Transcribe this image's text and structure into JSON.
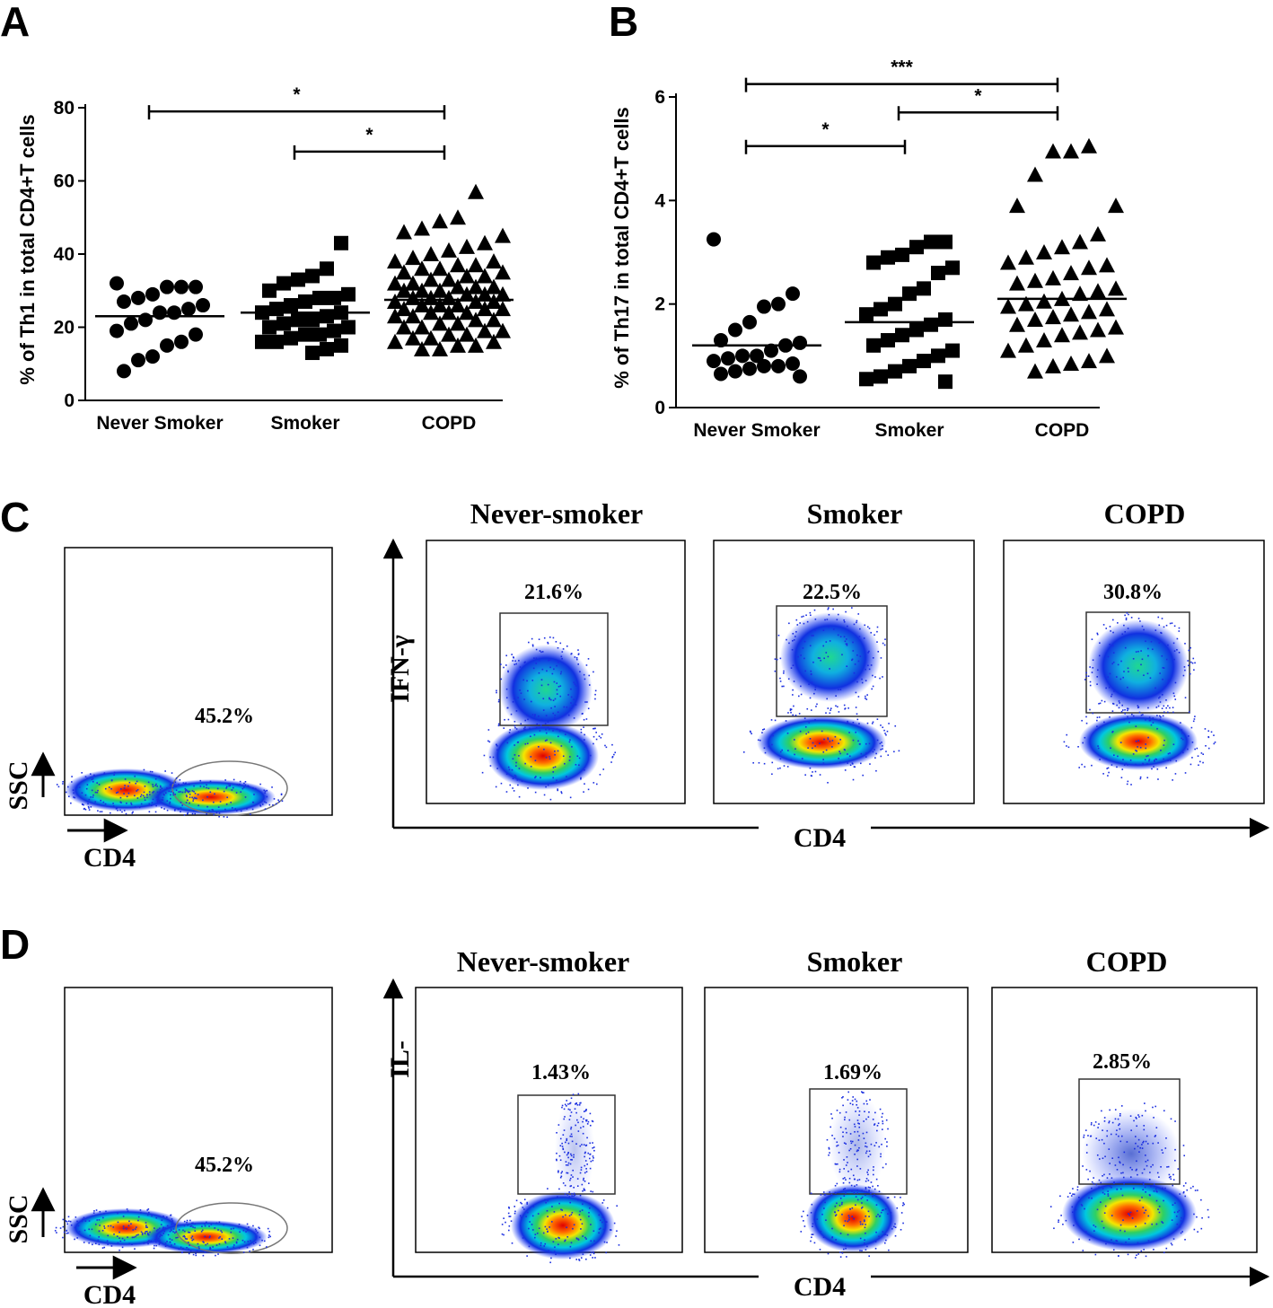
{
  "chart_data": [
    {
      "type": "strip",
      "panel_label": "A",
      "ylabel": "% of Th1 in total CD4+T cells",
      "categories": [
        "Never Smoker",
        "Smoker",
        "COPD"
      ],
      "markers": [
        "circle",
        "square",
        "triangle"
      ],
      "color": "#000000",
      "groups": [
        [
          32,
          31,
          31,
          31,
          29,
          28,
          27,
          26,
          25,
          24,
          24,
          22,
          21,
          19,
          18,
          16,
          15,
          12,
          11,
          8
        ],
        [
          43,
          36,
          34,
          33,
          32,
          30,
          29,
          28,
          28,
          27,
          26,
          25,
          24,
          24,
          23,
          22,
          22,
          21,
          20,
          20,
          19,
          18,
          18,
          17,
          16,
          16,
          15,
          14,
          13
        ],
        [
          57,
          50,
          49,
          47,
          46,
          45,
          43,
          42,
          41,
          40,
          39,
          38,
          38,
          37,
          37,
          36,
          36,
          35,
          35,
          34,
          34,
          33,
          33,
          32,
          32,
          31,
          31,
          31,
          30,
          30,
          30,
          29,
          29,
          29,
          28,
          28,
          28,
          27,
          27,
          27,
          26,
          26,
          26,
          25,
          25,
          25,
          24,
          24,
          24,
          23,
          23,
          22,
          22,
          21,
          21,
          20,
          20,
          19,
          19,
          18,
          18,
          17,
          17,
          16,
          16,
          15,
          15,
          14,
          14
        ]
      ],
      "means": [
        23,
        24,
        27.5
      ],
      "ylim": [
        0,
        80
      ],
      "yticks": [
        0,
        20,
        40,
        60,
        80
      ],
      "annotations": [
        {
          "text": "*",
          "from": 0,
          "to": 2,
          "y": 79
        },
        {
          "text": "*",
          "from": 1,
          "to": 2,
          "y": 68
        }
      ]
    },
    {
      "type": "strip",
      "panel_label": "B",
      "ylabel": "% of Th17 in total CD4+T cells",
      "categories": [
        "Never Smoker",
        "Smoker",
        "COPD"
      ],
      "markers": [
        "circle",
        "square",
        "triangle"
      ],
      "color": "#000000",
      "groups": [
        [
          3.25,
          2.2,
          2.0,
          1.95,
          1.65,
          1.5,
          1.3,
          1.25,
          1.2,
          1.1,
          1.0,
          1.0,
          0.95,
          0.9,
          0.85,
          0.8,
          0.8,
          0.75,
          0.7,
          0.65,
          0.6
        ],
        [
          3.2,
          3.2,
          3.1,
          2.95,
          2.9,
          2.8,
          2.7,
          2.6,
          2.3,
          2.2,
          2.0,
          1.9,
          1.8,
          1.7,
          1.6,
          1.5,
          1.4,
          1.3,
          1.2,
          1.1,
          1.0,
          0.9,
          0.8,
          0.7,
          0.6,
          0.55,
          0.5
        ],
        [
          5.05,
          4.95,
          4.95,
          4.5,
          3.9,
          3.9,
          3.35,
          3.2,
          3.1,
          3.0,
          2.9,
          2.8,
          2.75,
          2.7,
          2.6,
          2.5,
          2.45,
          2.4,
          2.3,
          2.25,
          2.2,
          2.1,
          2.05,
          2.0,
          1.95,
          1.9,
          1.85,
          1.8,
          1.75,
          1.7,
          1.6,
          1.55,
          1.5,
          1.45,
          1.4,
          1.3,
          1.2,
          1.1,
          1.0,
          0.9,
          0.85,
          0.8,
          0.7
        ]
      ],
      "means": [
        1.2,
        1.65,
        2.1
      ],
      "ylim": [
        0,
        6
      ],
      "yticks": [
        0,
        2,
        4,
        6
      ],
      "annotations": [
        {
          "text": "***",
          "from": 0,
          "to": 2,
          "y": 6.25
        },
        {
          "text": "*",
          "from": 1,
          "to": 2,
          "y": 5.7
        },
        {
          "text": "*",
          "from": 0,
          "to": 1,
          "y": 5.05
        }
      ]
    }
  ],
  "panel_c": {
    "label": "C",
    "gate": {
      "percent": "45.2%",
      "y_axis": "SSC",
      "x_axis": "CD4"
    },
    "y_axis": "IFN-γ",
    "x_axis": "CD4",
    "plots": [
      {
        "title": "Never-smoker",
        "percent": "21.6%"
      },
      {
        "title": "Smoker",
        "percent": "22.5%"
      },
      {
        "title": "COPD",
        "percent": "30.8%"
      }
    ]
  },
  "panel_d": {
    "label": "D",
    "gate": {
      "percent": "45.2%",
      "y_axis": "SSC",
      "x_axis": "CD4"
    },
    "y_axis": "IL-",
    "x_axis": "CD4",
    "plots": [
      {
        "title": "Never-smoker",
        "percent": "1.43%"
      },
      {
        "title": "Smoker",
        "percent": "1.69%"
      },
      {
        "title": "COPD",
        "percent": "2.85%"
      }
    ]
  }
}
